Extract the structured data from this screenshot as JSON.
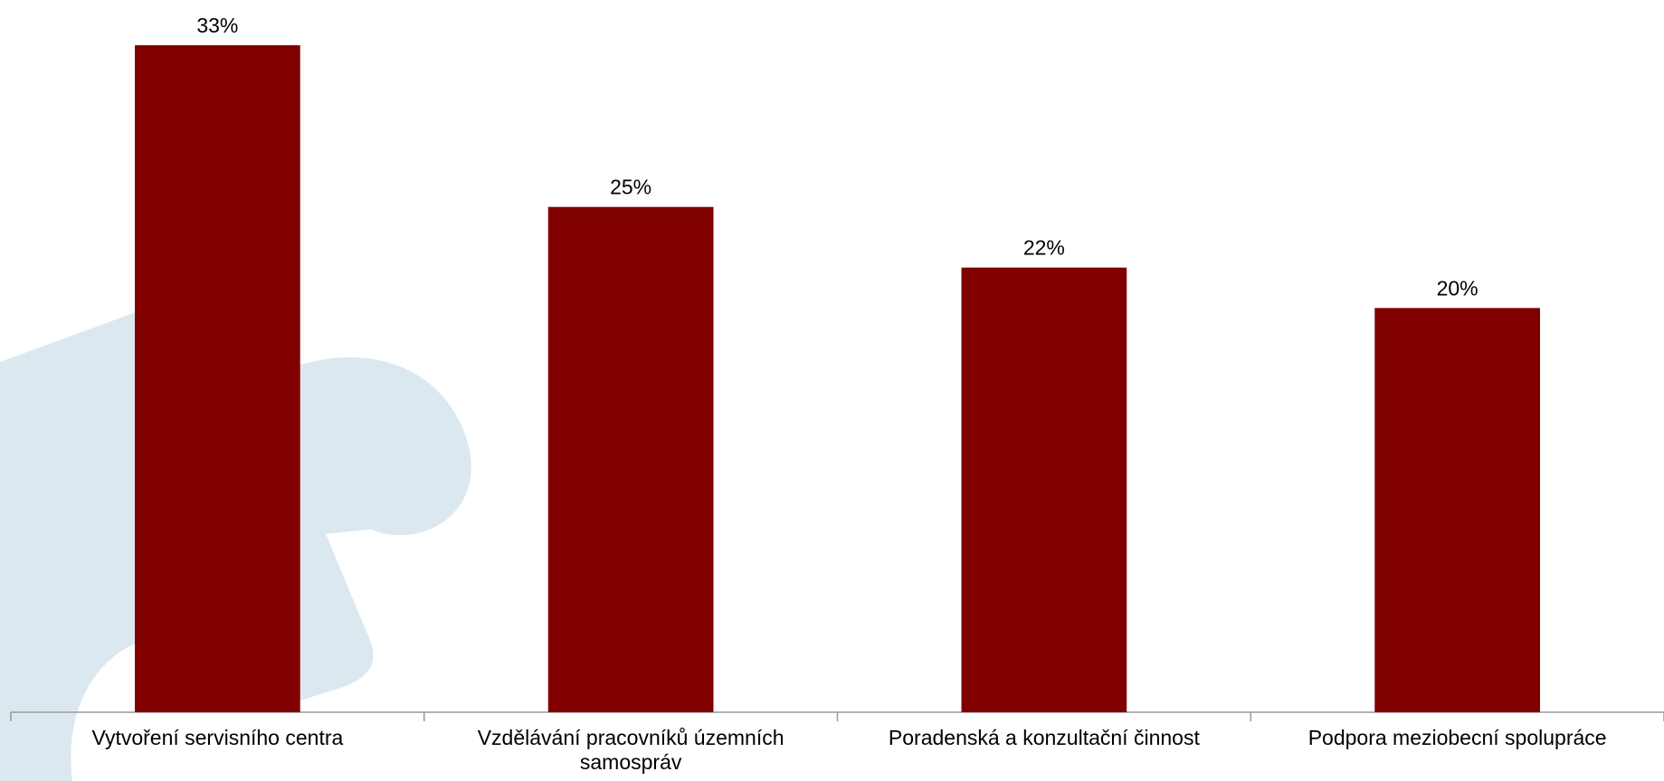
{
  "chart_data": {
    "type": "bar",
    "categories": [
      "Vytvoření servisního centra",
      "Vzdělávání pracovníků územních samospráv",
      "Poradenská a konzultační činnost",
      "Podpora meziobecní spolupráce"
    ],
    "values": [
      33,
      25,
      22,
      20
    ],
    "value_labels": [
      "33%",
      "25%",
      "22%",
      "20%"
    ],
    "color": "#800000"
  }
}
